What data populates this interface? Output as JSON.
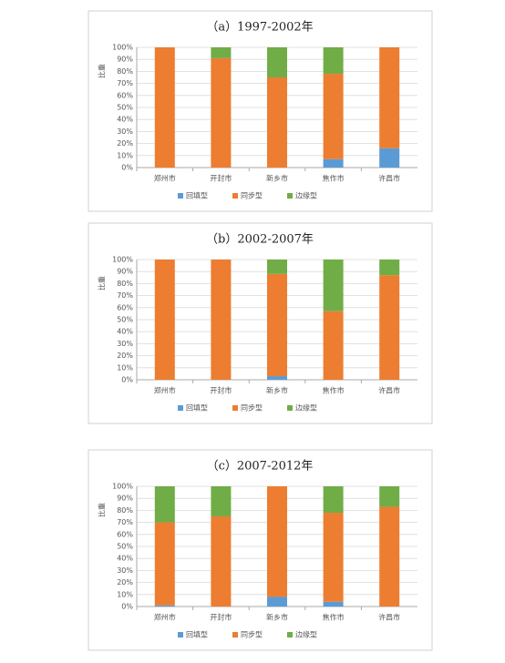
{
  "chart_data": [
    {
      "type": "stacked_bar",
      "title": "（a）1997-2002年",
      "y_label": "比重",
      "categories": [
        "郑州市",
        "开封市",
        "新乡市",
        "焦作市",
        "许昌市"
      ],
      "series": [
        {
          "name": "回填型",
          "color": "#5b9bd5",
          "values": [
            0,
            0,
            0,
            7,
            16
          ]
        },
        {
          "name": "同步型",
          "color": "#ed7d31",
          "values": [
            100,
            91,
            75,
            71,
            84
          ]
        },
        {
          "name": "边缘型",
          "color": "#70ad47",
          "values": [
            0,
            9,
            25,
            22,
            0
          ]
        }
      ],
      "ylim": [
        0,
        100
      ],
      "yticks": [
        {
          "value": 0,
          "label": "0%"
        },
        {
          "value": 10,
          "label": "10%"
        },
        {
          "value": 20,
          "label": "20%"
        },
        {
          "value": 30,
          "label": "30%"
        },
        {
          "value": 40,
          "label": "40%"
        },
        {
          "value": 50,
          "label": "50%"
        },
        {
          "value": 60,
          "label": "60%"
        },
        {
          "value": 70,
          "label": "70%"
        },
        {
          "value": 80,
          "label": "80%"
        },
        {
          "value": 90,
          "label": "90%"
        },
        {
          "value": 100,
          "label": "100%"
        }
      ],
      "grid": true
    },
    {
      "type": "stacked_bar",
      "title": "（b）2002-2007年",
      "y_label": "比重",
      "categories": [
        "郑州市",
        "开封市",
        "新乡市",
        "焦作市",
        "许昌市"
      ],
      "series": [
        {
          "name": "回填型",
          "color": "#5b9bd5",
          "values": [
            0,
            0,
            3,
            0,
            0
          ]
        },
        {
          "name": "同步型",
          "color": "#ed7d31",
          "values": [
            100,
            100,
            85,
            57,
            87
          ]
        },
        {
          "name": "边缘型",
          "color": "#70ad47",
          "values": [
            0,
            0,
            12,
            43,
            13
          ]
        }
      ],
      "ylim": [
        0,
        100
      ],
      "yticks": [
        {
          "value": 0,
          "label": "0%"
        },
        {
          "value": 10,
          "label": "10%"
        },
        {
          "value": 20,
          "label": "20%"
        },
        {
          "value": 30,
          "label": "30%"
        },
        {
          "value": 40,
          "label": "40%"
        },
        {
          "value": 50,
          "label": "50%"
        },
        {
          "value": 60,
          "label": "60%"
        },
        {
          "value": 70,
          "label": "70%"
        },
        {
          "value": 80,
          "label": "80%"
        },
        {
          "value": 90,
          "label": "90%"
        },
        {
          "value": 100,
          "label": "100%"
        }
      ],
      "grid": true
    },
    {
      "type": "stacked_bar",
      "title": "（c）2007-2012年",
      "y_label": "比重",
      "categories": [
        "郑州市",
        "开封市",
        "新乡市",
        "焦作市",
        "许昌市"
      ],
      "series": [
        {
          "name": "回填型",
          "color": "#5b9bd5",
          "values": [
            1,
            0,
            8,
            4,
            0
          ]
        },
        {
          "name": "同步型",
          "color": "#ed7d31",
          "values": [
            69,
            75,
            92,
            74,
            83
          ]
        },
        {
          "name": "边缘型",
          "color": "#70ad47",
          "values": [
            30,
            25,
            0,
            22,
            17
          ]
        }
      ],
      "ylim": [
        0,
        100
      ],
      "yticks": [
        {
          "value": 0,
          "label": "0%"
        },
        {
          "value": 10,
          "label": "10%"
        },
        {
          "value": 20,
          "label": "20%"
        },
        {
          "value": 30,
          "label": "30%"
        },
        {
          "value": 40,
          "label": "40%"
        },
        {
          "value": 50,
          "label": "50%"
        },
        {
          "value": 60,
          "label": "60%"
        },
        {
          "value": 70,
          "label": "70%"
        },
        {
          "value": 80,
          "label": "80%"
        },
        {
          "value": 90,
          "label": "90%"
        },
        {
          "value": 100,
          "label": "100%"
        }
      ],
      "grid": true
    }
  ]
}
